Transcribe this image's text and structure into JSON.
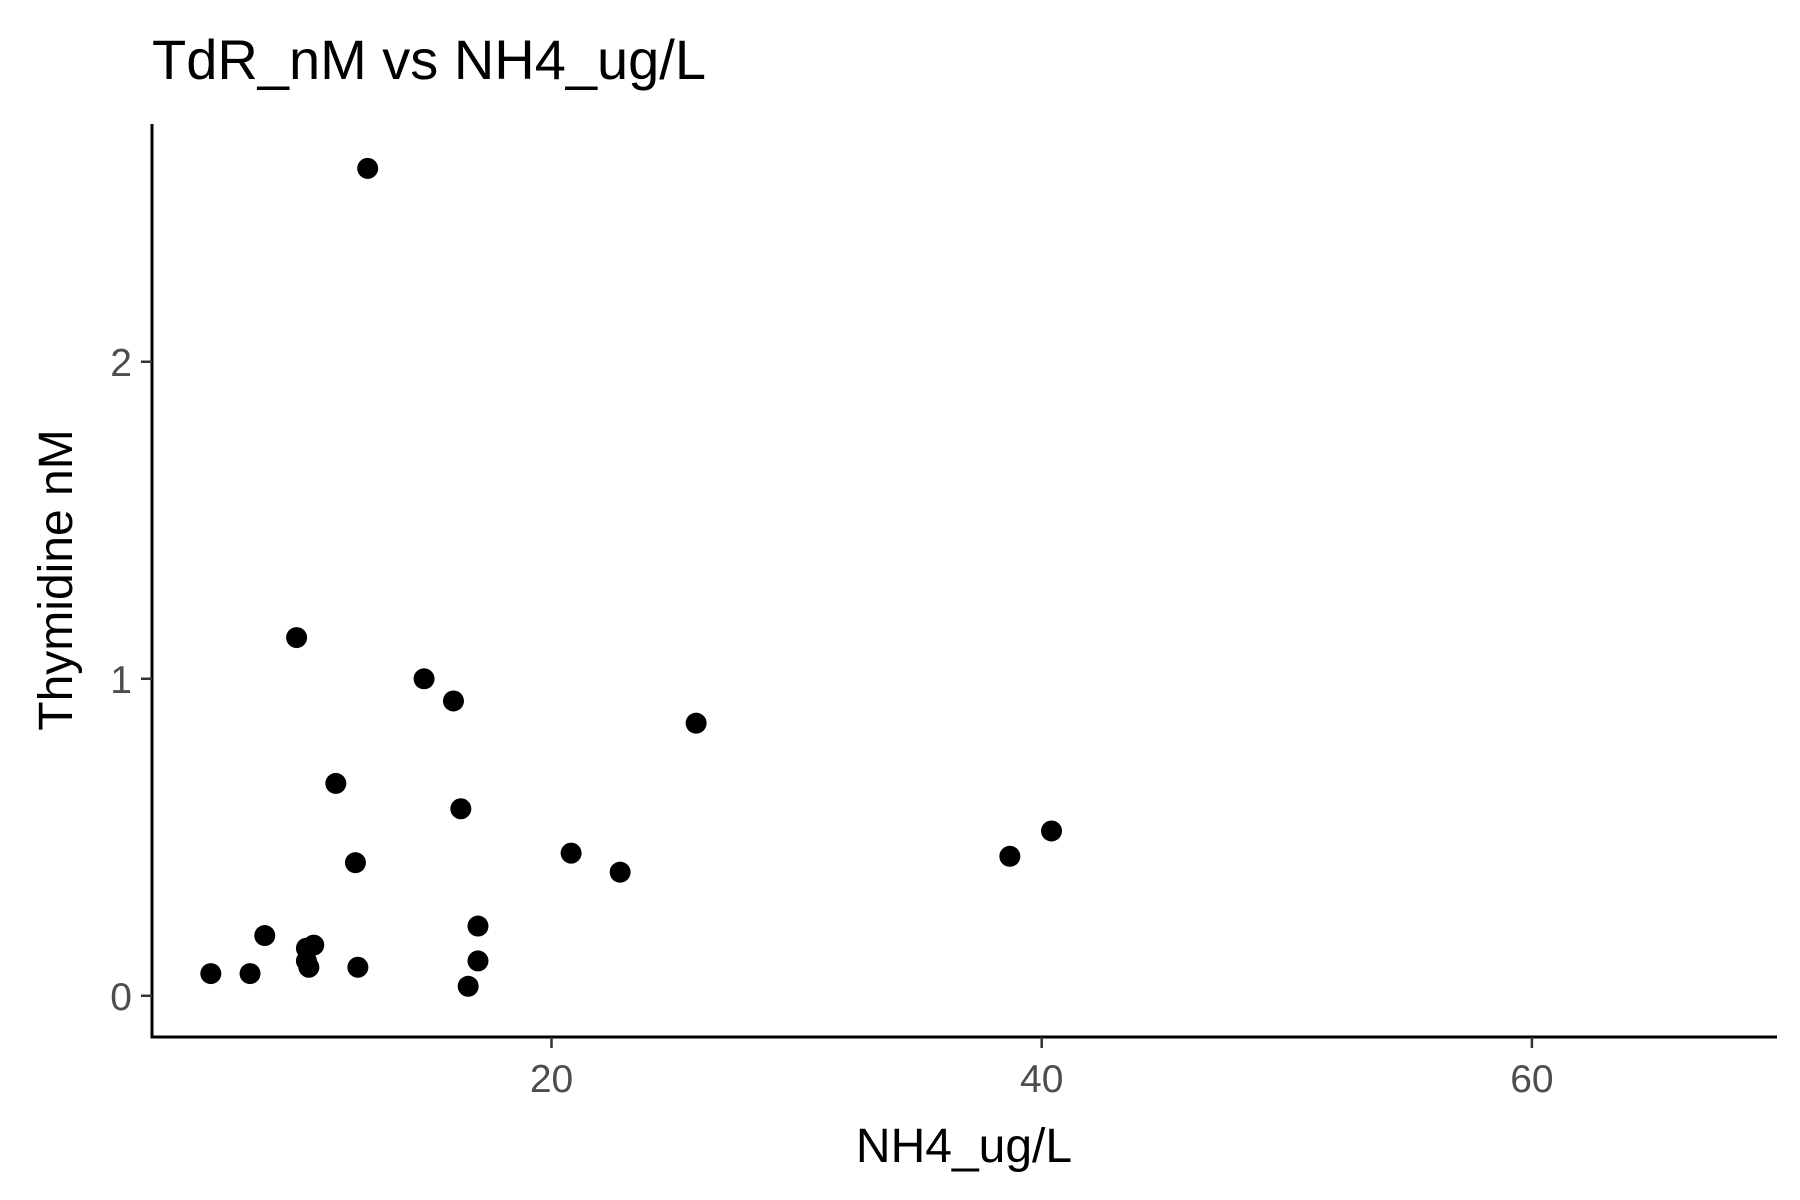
{
  "chart_data": {
    "type": "scatter",
    "title": "TdR_nM vs NH4_ug/L",
    "xlabel": "NH4_ug/L",
    "ylabel": "Thymidine nM",
    "xlim": [
      3.7,
      70
    ],
    "ylim": [
      -0.13,
      2.75
    ],
    "x_ticks": [
      20,
      40,
      60
    ],
    "y_ticks": [
      0,
      1,
      2
    ],
    "grid": false,
    "legend": "none",
    "point_color": "#000000",
    "points": [
      {
        "x": 12.5,
        "y": 2.61
      },
      {
        "x": 9.6,
        "y": 1.13
      },
      {
        "x": 14.8,
        "y": 1.0
      },
      {
        "x": 16.0,
        "y": 0.93
      },
      {
        "x": 25.9,
        "y": 0.86
      },
      {
        "x": 11.2,
        "y": 0.67
      },
      {
        "x": 16.3,
        "y": 0.59
      },
      {
        "x": 40.4,
        "y": 0.52
      },
      {
        "x": 20.8,
        "y": 0.45
      },
      {
        "x": 38.7,
        "y": 0.44
      },
      {
        "x": 12.0,
        "y": 0.42
      },
      {
        "x": 22.8,
        "y": 0.39
      },
      {
        "x": 17.0,
        "y": 0.22
      },
      {
        "x": 8.3,
        "y": 0.19
      },
      {
        "x": 10.3,
        "y": 0.16
      },
      {
        "x": 10.0,
        "y": 0.15
      },
      {
        "x": 17.0,
        "y": 0.11
      },
      {
        "x": 10.0,
        "y": 0.11
      },
      {
        "x": 10.1,
        "y": 0.09
      },
      {
        "x": 12.1,
        "y": 0.09
      },
      {
        "x": 6.1,
        "y": 0.07
      },
      {
        "x": 7.7,
        "y": 0.07
      },
      {
        "x": 16.6,
        "y": 0.03
      }
    ]
  }
}
